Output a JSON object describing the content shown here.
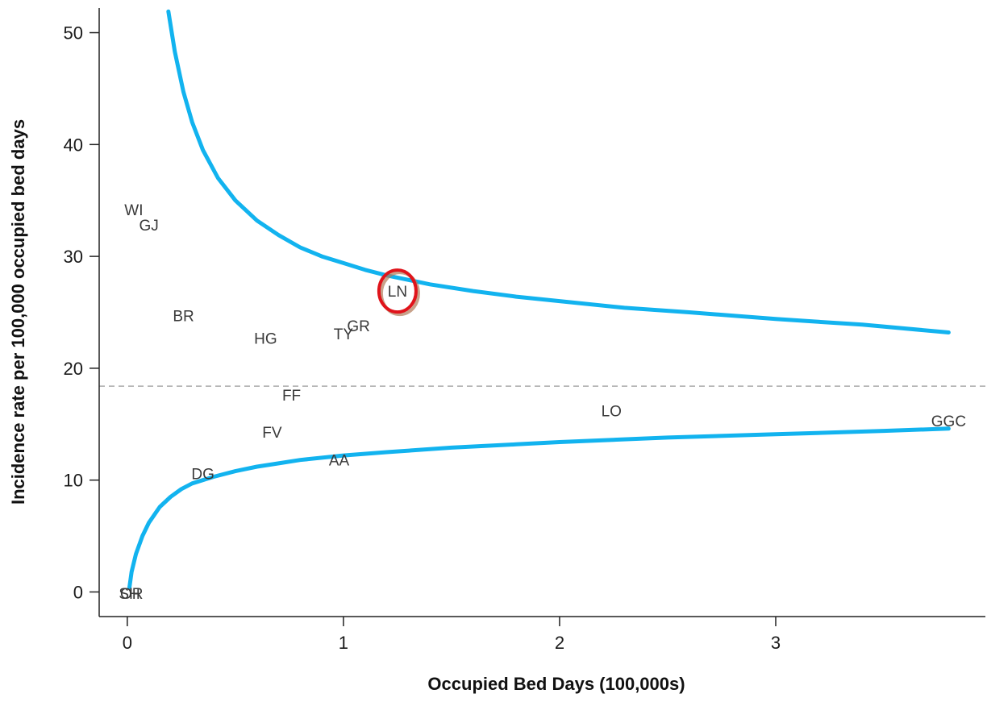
{
  "chart_data": {
    "type": "scatter",
    "subtype": "funnel-plot",
    "title": "",
    "xlabel": "Occupied Bed Days (100,000s)",
    "ylabel": "Incidence rate per 100,000 occupied bed days",
    "xlim": [
      -0.13,
      3.97
    ],
    "ylim": [
      -2.2,
      52.2
    ],
    "xticks": [
      0,
      1,
      2,
      3
    ],
    "yticks": [
      0,
      10,
      20,
      30,
      40,
      50
    ],
    "grid": false,
    "legend": "none",
    "reference_line": {
      "y": 18.4,
      "style": "dashed",
      "color": "#aaaaaa"
    },
    "points": [
      {
        "label": "WI",
        "x": 0.03,
        "y": 34.2
      },
      {
        "label": "GJ",
        "x": 0.1,
        "y": 32.8
      },
      {
        "label": "BR",
        "x": 0.26,
        "y": 24.7
      },
      {
        "label": "HG",
        "x": 0.64,
        "y": 22.7
      },
      {
        "label": "TY",
        "x": 1.0,
        "y": 23.1
      },
      {
        "label": "GR",
        "x": 1.07,
        "y": 23.8
      },
      {
        "label": "LN",
        "x": 1.25,
        "y": 26.9
      },
      {
        "label": "FF",
        "x": 0.76,
        "y": 17.6
      },
      {
        "label": "FV",
        "x": 0.67,
        "y": 14.3
      },
      {
        "label": "DG",
        "x": 0.35,
        "y": 10.6
      },
      {
        "label": "AA",
        "x": 0.98,
        "y": 11.8
      },
      {
        "label": "LO",
        "x": 2.24,
        "y": 16.2
      },
      {
        "label": "GGC",
        "x": 3.8,
        "y": 15.3
      },
      {
        "label": "SH",
        "x": 0.01,
        "y": -0.1
      },
      {
        "label": "OR",
        "x": 0.02,
        "y": -0.1
      }
    ],
    "upper_limit": {
      "x": [
        0.19,
        0.22,
        0.26,
        0.3,
        0.35,
        0.42,
        0.5,
        0.6,
        0.7,
        0.8,
        0.9,
        1.0,
        1.1,
        1.2,
        1.4,
        1.6,
        1.8,
        2.0,
        2.3,
        2.6,
        3.0,
        3.4,
        3.8
      ],
      "y": [
        51.9,
        48.3,
        44.7,
        42.0,
        39.5,
        37.0,
        35.0,
        33.2,
        31.9,
        30.8,
        30.0,
        29.4,
        28.8,
        28.3,
        27.5,
        26.9,
        26.4,
        26.0,
        25.4,
        25.0,
        24.4,
        23.9,
        23.2
      ],
      "color": "#12b3ef"
    },
    "lower_limit": {
      "x": [
        0.01,
        0.02,
        0.04,
        0.07,
        0.1,
        0.15,
        0.2,
        0.25,
        0.3,
        0.4,
        0.5,
        0.6,
        0.7,
        0.8,
        1.0,
        1.2,
        1.5,
        1.8,
        2.0,
        2.5,
        3.0,
        3.5,
        3.8
      ],
      "y": [
        0.4,
        1.8,
        3.4,
        5.0,
        6.2,
        7.6,
        8.5,
        9.2,
        9.7,
        10.3,
        10.8,
        11.2,
        11.5,
        11.8,
        12.2,
        12.5,
        12.9,
        13.2,
        13.4,
        13.8,
        14.1,
        14.4,
        14.6
      ],
      "color": "#12b3ef"
    },
    "highlight": {
      "label": "LN",
      "ring_color": "#e0141b"
    }
  }
}
